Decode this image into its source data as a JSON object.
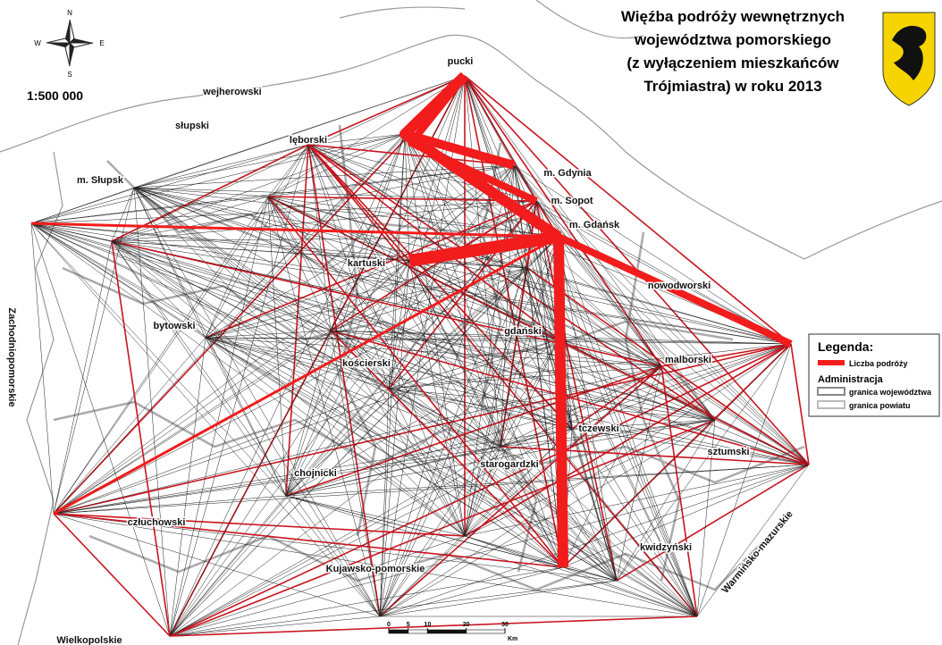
{
  "title": [
    "Więźba podróży wewnętrznych",
    "województwa pomorskiego",
    "(z wyłączeniem mieszkańców",
    "Trójmiastra) w roku 2013"
  ],
  "scale": "1:500 000",
  "compass": {
    "n": "N",
    "e": "E",
    "s": "S",
    "w": "W"
  },
  "legend": {
    "title": "Legenda:",
    "flow": "Liczba podróży",
    "admin": "Administracja",
    "voivodeship_border": "granica województwa",
    "county_border": "granica powiatu"
  },
  "places": [
    "pucki",
    "wejherowski",
    "słupski",
    "lęborski",
    "m. Słupsk",
    "m. Gdynia",
    "m. Sopot",
    "m. Gdańsk",
    "kartuski",
    "nowodworski",
    "bytowski",
    "gdański",
    "malborski",
    "kościerski",
    "tczewski",
    "sztumski",
    "starogardzki",
    "chojnicki",
    "człuchowski",
    "kwidzyński"
  ],
  "regions": [
    "Zachodniopomorskie",
    "Kujawsko-pomorskie",
    "Warmińsko-mazurskie",
    "Wielkopolskie"
  ],
  "scale_bar": {
    "ticks": [
      0,
      5,
      10,
      20,
      30
    ],
    "unit": "Km"
  }
}
